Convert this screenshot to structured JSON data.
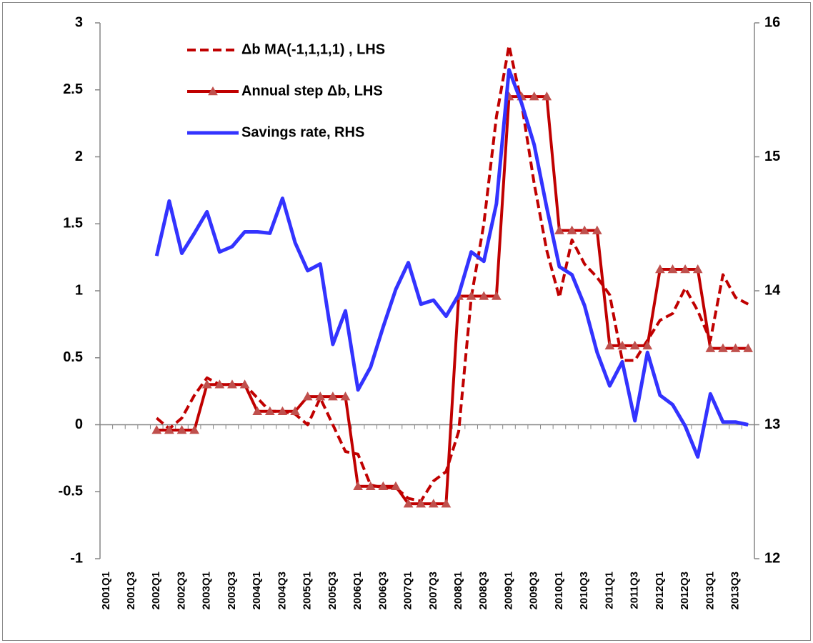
{
  "chart_data": {
    "type": "line",
    "categories": [
      "2001Q1",
      null,
      "2001Q3",
      null,
      "2002Q1",
      null,
      "2002Q3",
      null,
      "2003Q1",
      null,
      "2003Q3",
      null,
      "2004Q1",
      null,
      "2004Q3",
      null,
      "2005Q1",
      null,
      "2005Q3",
      null,
      "2006Q1",
      null,
      "2006Q3",
      null,
      "2007Q1",
      null,
      "2007Q3",
      null,
      "2008Q1",
      null,
      "2008Q3",
      null,
      "2009Q1",
      null,
      "2009Q3",
      null,
      "2010Q1",
      null,
      "2010Q3",
      null,
      "2011Q1",
      null,
      "2011Q3",
      null,
      "2012Q1",
      null,
      "2012Q3",
      null,
      "2013Q1",
      null,
      "2013Q3",
      null
    ],
    "series": [
      {
        "name": "Δb MA(-1,1,1,1) , LHS",
        "color": "#c00000",
        "dashed": true,
        "values": [
          null,
          null,
          null,
          null,
          0.05,
          -0.03,
          0.05,
          0.22,
          0.35,
          0.3,
          0.3,
          0.3,
          0.2,
          0.1,
          0.1,
          0.08,
          0.0,
          0.2,
          0.0,
          -0.2,
          -0.22,
          -0.45,
          -0.47,
          -0.47,
          -0.55,
          -0.57,
          -0.42,
          -0.35,
          -0.05,
          0.95,
          1.5,
          2.3,
          2.83,
          2.4,
          1.8,
          1.3,
          0.95,
          1.38,
          1.2,
          1.1,
          0.97,
          0.48,
          0.48,
          0.63,
          0.78,
          0.83,
          1.02,
          0.85,
          0.63,
          1.12,
          0.95,
          0.9
        ]
      },
      {
        "name": "Annual step Δb, LHS",
        "color": "#c00000",
        "marker": "triangle",
        "marker_color": "#c0504d",
        "values": [
          null,
          null,
          null,
          null,
          -0.04,
          -0.04,
          -0.04,
          -0.04,
          0.3,
          0.3,
          0.3,
          0.3,
          0.1,
          0.1,
          0.1,
          0.1,
          0.21,
          0.21,
          0.21,
          0.21,
          -0.46,
          -0.46,
          -0.46,
          -0.46,
          -0.59,
          -0.59,
          -0.59,
          -0.59,
          0.96,
          0.96,
          0.96,
          0.96,
          2.45,
          2.45,
          2.45,
          2.45,
          1.45,
          1.45,
          1.45,
          1.45,
          0.59,
          0.59,
          0.59,
          0.59,
          1.16,
          1.16,
          1.16,
          1.16,
          0.57,
          0.57,
          0.57,
          0.57
        ]
      },
      {
        "name": "Savings rate, RHS",
        "color": "#3333ff",
        "axis": "y2",
        "values": [
          null,
          null,
          null,
          null,
          14.26,
          14.67,
          14.28,
          14.43,
          14.59,
          14.29,
          14.33,
          14.44,
          14.44,
          14.43,
          14.69,
          14.36,
          14.15,
          14.2,
          13.6,
          13.85,
          13.26,
          13.43,
          13.73,
          14.01,
          14.21,
          13.9,
          13.93,
          13.81,
          13.97,
          14.29,
          14.22,
          14.65,
          15.65,
          15.4,
          15.09,
          14.62,
          14.18,
          14.12,
          13.89,
          13.54,
          13.29,
          13.47,
          13.03,
          13.54,
          13.22,
          13.15,
          12.99,
          12.76,
          13.23,
          13.02,
          13.02,
          13.0
        ]
      }
    ],
    "ylim": [
      -1,
      3
    ],
    "yticks": [
      -1,
      -0.5,
      0,
      0.5,
      1,
      1.5,
      2,
      2.5,
      3
    ],
    "y2lim": [
      12,
      16
    ],
    "y2ticks": [
      12,
      13,
      14,
      15,
      16
    ],
    "grid": false,
    "legend": "top-left"
  }
}
